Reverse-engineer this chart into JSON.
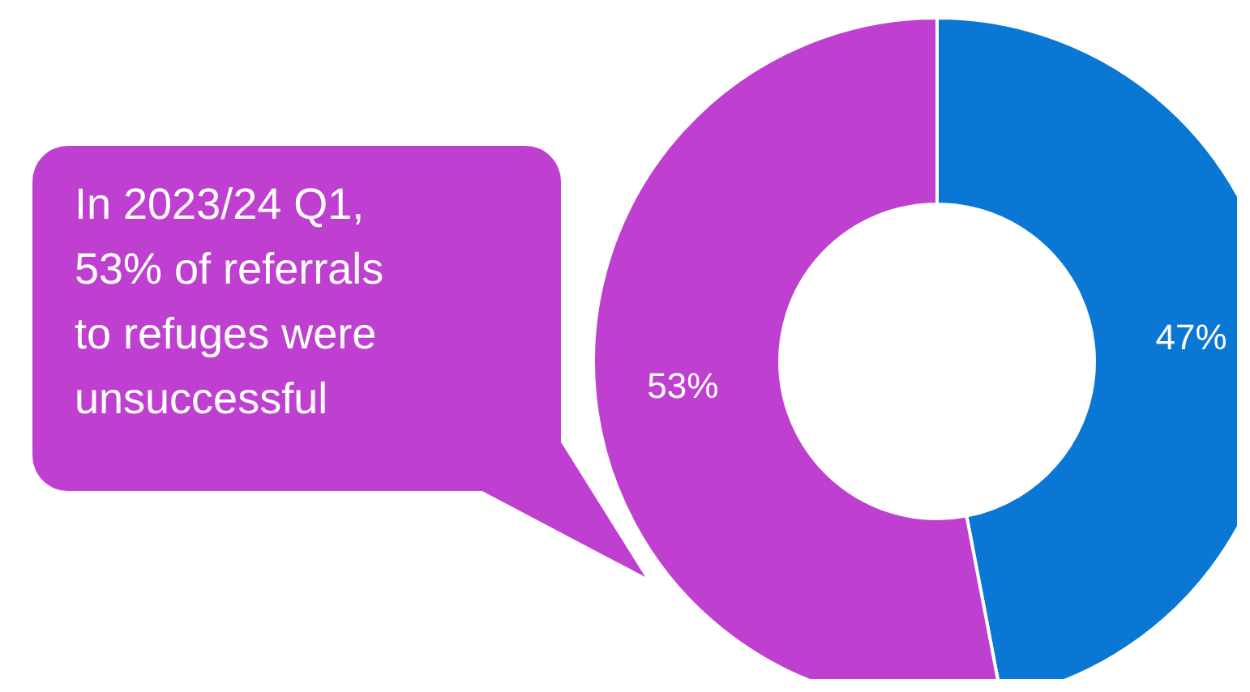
{
  "chart_data": {
    "type": "donut",
    "categories": [
      null,
      null
    ],
    "values": [
      47,
      53
    ],
    "value_labels": [
      "47%",
      "53%"
    ],
    "colors": [
      "#0a77d5",
      "#bf40d0"
    ],
    "annotations": [
      "In 2023/24 Q1, 53% of referrals to refuges were unsuccessful"
    ]
  }
}
